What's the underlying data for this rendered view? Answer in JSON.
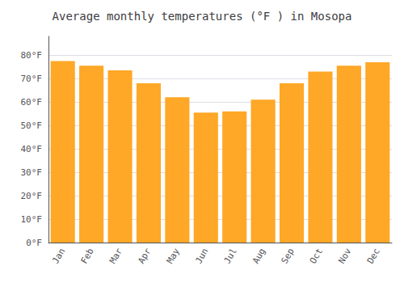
{
  "chart_data": {
    "type": "bar",
    "title": "Average monthly temperatures (°F ) in Mosopa",
    "categories": [
      "Jan",
      "Feb",
      "Mar",
      "Apr",
      "May",
      "Jun",
      "Jul",
      "Aug",
      "Sep",
      "Oct",
      "Nov",
      "Dec"
    ],
    "values": [
      77.5,
      75.5,
      73.5,
      68,
      62,
      55.5,
      56,
      61,
      68,
      73,
      75.5,
      77
    ],
    "color": "#FFA726",
    "ylim": [
      0,
      88
    ],
    "yticks": [
      {
        "value": 0,
        "label": "0°F"
      },
      {
        "value": 10,
        "label": "10°F"
      },
      {
        "value": 20,
        "label": "20°F"
      },
      {
        "value": 30,
        "label": "30°F"
      },
      {
        "value": 40,
        "label": "40°F"
      },
      {
        "value": 50,
        "label": "50°F"
      },
      {
        "value": 60,
        "label": "60°F"
      },
      {
        "value": 70,
        "label": "70°F"
      },
      {
        "value": 80,
        "label": "80°F"
      }
    ],
    "grid": true
  }
}
